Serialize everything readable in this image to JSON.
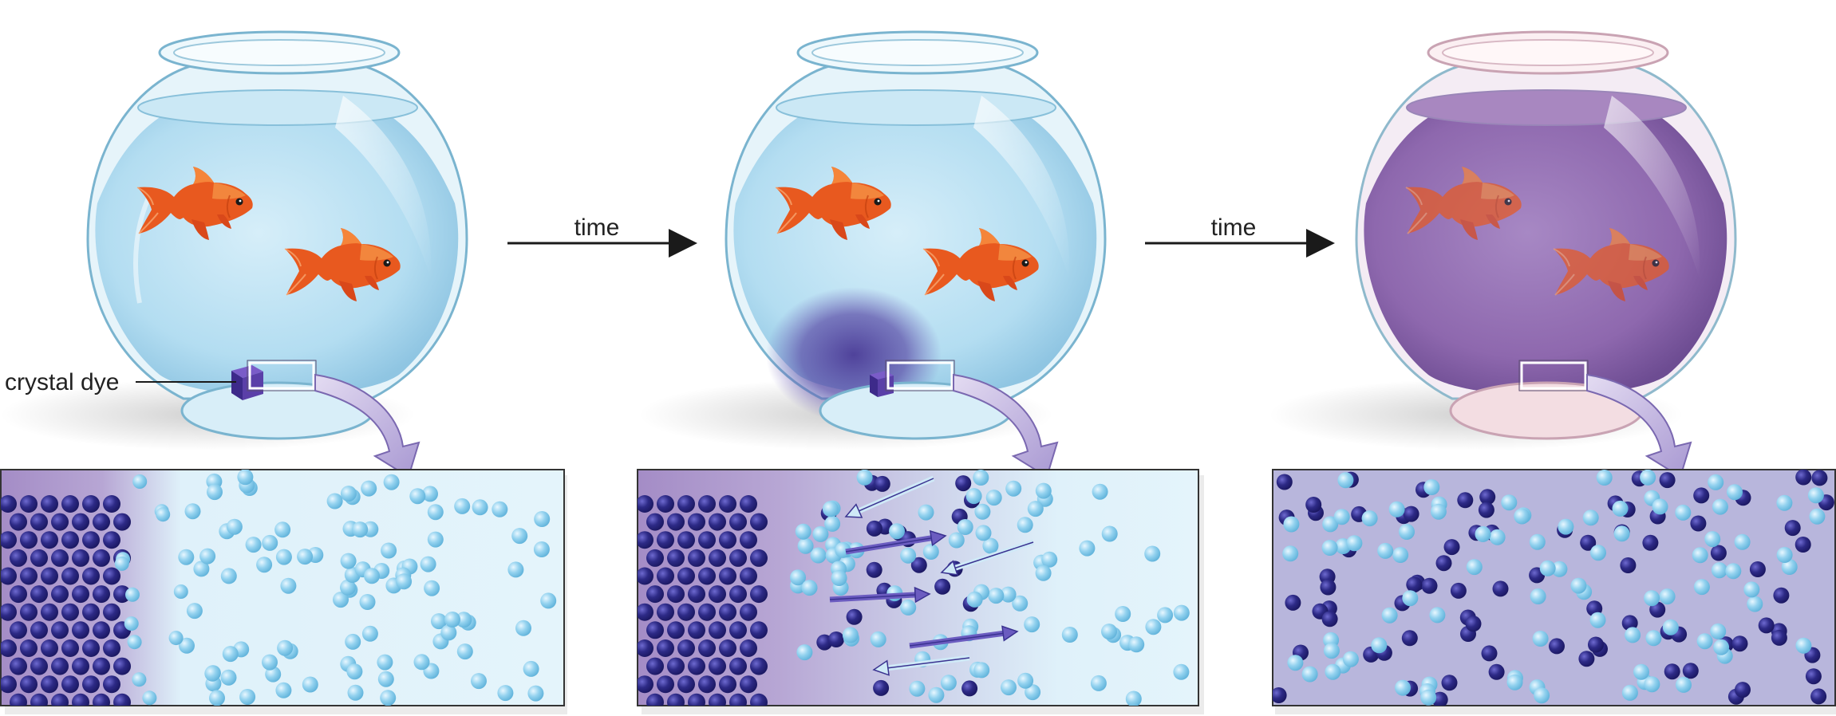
{
  "labels": {
    "time_arrow_1": "time",
    "time_arrow_2": "time",
    "crystal_dye": "crystal dye"
  },
  "colors": {
    "water": "#bfe3f3",
    "water_dark": "#9fd0ea",
    "dye_water": "#9b78b8",
    "dye_water_dark": "#7d5a9e",
    "dye_particle": "#2d2a86",
    "water_particle": "#8fd0ee",
    "fish": "#e8591f",
    "fish_light": "#f79a4a",
    "glass_edge": "#6ea9c4",
    "arrow_fill": "#b9acd8",
    "panel_bg_clear": "#dff2fb",
    "panel_bg_mixed": "#b7b8dc"
  },
  "icons": {
    "fish": "goldfish",
    "crystal": "crystal-dye-cube",
    "zoom_arrow": "curved-zoom-arrow",
    "time_arrow": "right-arrow"
  }
}
